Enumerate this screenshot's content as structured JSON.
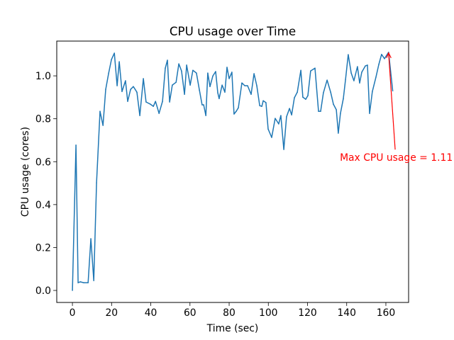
{
  "chart_data": {
    "type": "line",
    "title": "CPU usage over Time",
    "xlabel": "Time (sec)",
    "ylabel": "CPU usage (cores)",
    "xlim": [
      -8,
      171.6
    ],
    "ylim": [
      -0.056,
      1.162
    ],
    "xticks": [
      0,
      20,
      40,
      60,
      80,
      100,
      120,
      140,
      160
    ],
    "xtick_labels": [
      "0",
      "20",
      "40",
      "60",
      "80",
      "100",
      "120",
      "140",
      "160"
    ],
    "yticks": [
      0.0,
      0.2,
      0.4,
      0.6,
      0.8,
      1.0
    ],
    "ytick_labels": [
      "0.0",
      "0.2",
      "0.4",
      "0.6",
      "0.8",
      "1.0"
    ],
    "grid": false,
    "line_color": "#1f77b4",
    "annotation_color": "#ff0000",
    "series": [
      {
        "name": "CPU usage",
        "x": [
          0,
          1.8,
          2.9,
          4.0,
          5.8,
          8.0,
          9.4,
          10.9,
          12.3,
          14.1,
          15.6,
          17.0,
          18.5,
          19.9,
          21.4,
          22.8,
          23.9,
          25.3,
          27.1,
          28.2,
          29.7,
          31.1,
          32.9,
          34.4,
          36.2,
          37.6,
          39.8,
          41.3,
          42.4,
          44.2,
          46.0,
          47.4,
          48.5,
          49.6,
          51.0,
          52.9,
          54.3,
          55.7,
          57.2,
          58.3,
          60.1,
          61.5,
          63.3,
          64.8,
          66.2,
          67.0,
          68.1,
          69.1,
          70.2,
          71.7,
          73.1,
          74.2,
          74.9,
          76.4,
          77.8,
          78.9,
          80.0,
          81.4,
          82.5,
          83.6,
          84.7,
          86.5,
          88.0,
          89.4,
          91.2,
          92.7,
          94.1,
          95.6,
          96.7,
          97.4,
          98.8,
          99.9,
          101.7,
          103.5,
          105.3,
          106.4,
          107.9,
          109.3,
          110.8,
          111.9,
          113.3,
          114.8,
          116.6,
          117.6,
          119.1,
          120.2,
          121.6,
          123.8,
          125.6,
          126.7,
          128.1,
          130.0,
          131.8,
          133.2,
          134.7,
          135.7,
          136.8,
          138.3,
          139.4,
          140.8,
          142.3,
          143.7,
          145.5,
          146.6,
          147.7,
          149.5,
          150.6,
          151.7,
          153.1,
          154.9,
          156.4,
          157.8,
          159.3,
          161.4,
          163.5
        ],
        "y": [
          0,
          0.677,
          0.036,
          0.04,
          0.036,
          0.036,
          0.241,
          0.046,
          0.502,
          0.835,
          0.769,
          0.937,
          1.013,
          1.076,
          1.106,
          0.954,
          1.066,
          0.927,
          0.977,
          0.881,
          0.937,
          0.95,
          0.924,
          0.815,
          0.987,
          0.878,
          0.868,
          0.858,
          0.881,
          0.825,
          0.881,
          1.036,
          1.073,
          0.878,
          0.957,
          0.97,
          1.056,
          1.023,
          0.914,
          1.05,
          0.957,
          1.026,
          1.013,
          0.934,
          0.865,
          0.865,
          0.815,
          1.013,
          0.95,
          1.0,
          1.02,
          0.921,
          0.894,
          0.957,
          0.924,
          1.04,
          0.987,
          1.017,
          0.822,
          0.835,
          0.851,
          0.967,
          0.954,
          0.954,
          0.914,
          1.01,
          0.954,
          0.861,
          0.858,
          0.884,
          0.875,
          0.752,
          0.713,
          0.802,
          0.776,
          0.815,
          0.657,
          0.809,
          0.848,
          0.818,
          0.898,
          0.924,
          1.026,
          0.901,
          0.891,
          0.908,
          1.023,
          1.036,
          0.835,
          0.835,
          0.921,
          0.98,
          0.924,
          0.868,
          0.842,
          0.733,
          0.825,
          0.894,
          0.983,
          1.099,
          1.013,
          0.977,
          1.043,
          0.967,
          1.017,
          1.046,
          1.05,
          0.825,
          0.927,
          0.993,
          1.053,
          1.1,
          1.08,
          1.11,
          0.93
        ]
      }
    ],
    "annotations": [
      {
        "text": "Max CPU usage = 1.11",
        "xy": [
          161.4,
          1.11
        ],
        "xytext": [
          136.5,
          0.62
        ]
      }
    ]
  }
}
